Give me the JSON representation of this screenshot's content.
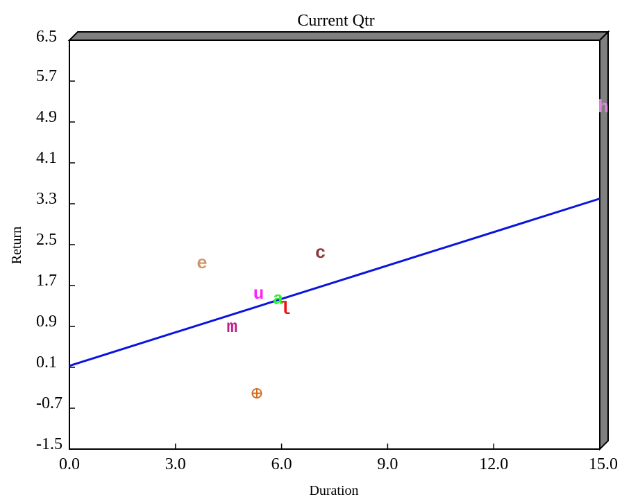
{
  "chart_data": {
    "type": "scatter",
    "title": "Current Qtr",
    "xlabel": "Duration",
    "ylabel": "Return",
    "xlim": [
      0.0,
      15.0
    ],
    "ylim": [
      -1.5,
      6.5
    ],
    "x_ticks": [
      "0.0",
      "3.0",
      "6.0",
      "9.0",
      "12.0",
      "15.0"
    ],
    "y_ticks": [
      "6.5",
      "5.7",
      "4.9",
      "4.1",
      "3.3",
      "2.5",
      "1.7",
      "0.9",
      "0.1",
      "-0.7",
      "-1.5"
    ],
    "grid": false,
    "points": [
      {
        "label": "e",
        "x": 3.75,
        "y": 2.15,
        "color": "#d2956a"
      },
      {
        "label": "c",
        "x": 7.1,
        "y": 2.35,
        "color": "#8b3a3a"
      },
      {
        "label": "u",
        "x": 5.35,
        "y": 1.55,
        "color": "#ff22ff"
      },
      {
        "label": "a",
        "x": 5.9,
        "y": 1.45,
        "color": "#33ee33"
      },
      {
        "label": "l",
        "x": 6.1,
        "y": 1.25,
        "color": "#ee1111"
      },
      {
        "label": "m",
        "x": 4.6,
        "y": 0.9,
        "color": "#c0208a"
      },
      {
        "label": "h",
        "x": 15.1,
        "y": 5.2,
        "color": "#dd88dd"
      },
      {
        "label": "⊕",
        "x": 5.3,
        "y": -0.4,
        "color": "#d2691e"
      }
    ],
    "trendline": {
      "x": [
        0.0,
        15.0
      ],
      "y": [
        0.13,
        3.4
      ],
      "color": "#0a14dc"
    }
  }
}
